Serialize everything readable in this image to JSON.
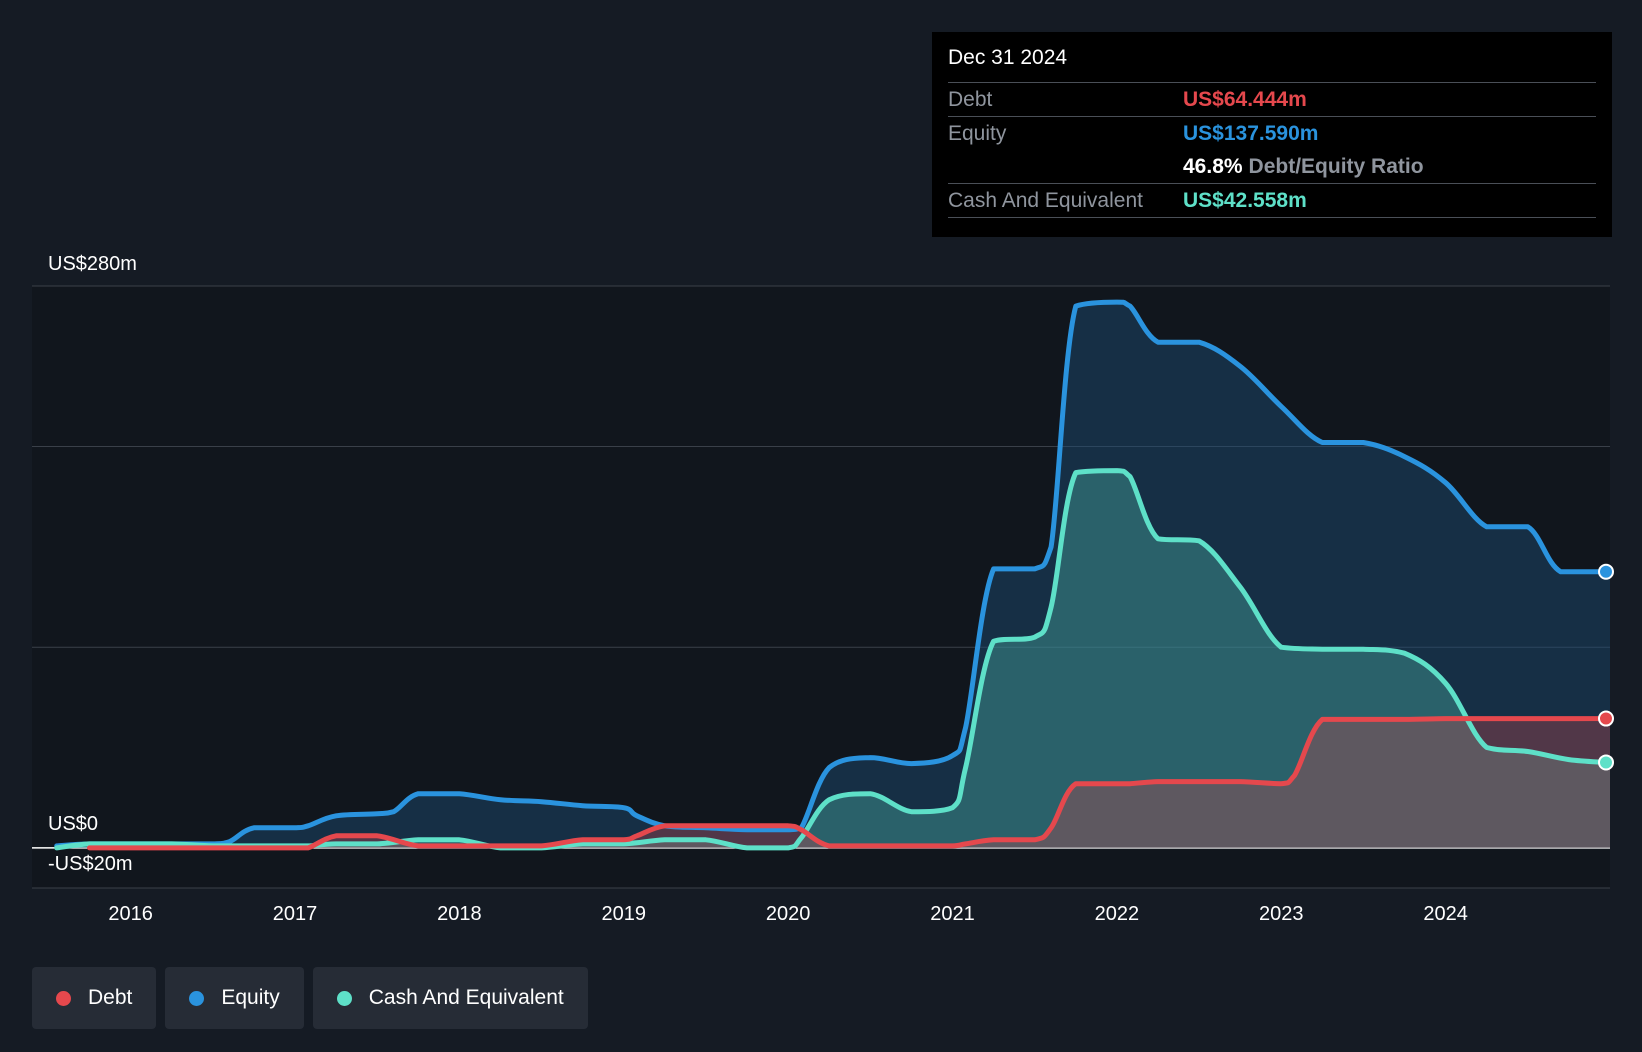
{
  "colors": {
    "debt": "#e5484d",
    "equity": "#2a93de",
    "cash": "#5ee0c8",
    "background": "#151b24",
    "plot_background": "#11161d",
    "grid": "#3a4049"
  },
  "tooltip": {
    "date": "Dec 31 2024",
    "debt_label": "Debt",
    "debt_value": "US$64.444m",
    "equity_label": "Equity",
    "equity_value": "US$137.590m",
    "ratio_value": "46.8%",
    "ratio_label": "Debt/Equity Ratio",
    "cash_label": "Cash And Equivalent",
    "cash_value": "US$42.558m"
  },
  "legend": {
    "debt": "Debt",
    "equity": "Equity",
    "cash": "Cash And Equivalent"
  },
  "chart_data": {
    "type": "area",
    "title": "",
    "xlabel": "",
    "ylabel": "",
    "ylim": [
      -20,
      280
    ],
    "xlim": [
      2015.4,
      2025.0
    ],
    "y_axis_labels": [
      "US$280m",
      "US$0",
      "-US$20m"
    ],
    "gridlines": [
      280,
      200,
      100,
      0
    ],
    "x_ticks": [
      2016,
      2017,
      2018,
      2019,
      2020,
      2021,
      2022,
      2023,
      2024
    ],
    "x_tick_labels": [
      "2016",
      "2017",
      "2018",
      "2019",
      "2020",
      "2021",
      "2022",
      "2023",
      "2024"
    ],
    "series": [
      {
        "name": "Equity",
        "key": "equity",
        "x": [
          2015.55,
          2015.75,
          2016.0,
          2016.25,
          2016.5,
          2016.6,
          2016.75,
          2017.0,
          2017.08,
          2017.25,
          2017.5,
          2017.6,
          2017.75,
          2018.0,
          2018.25,
          2018.5,
          2018.75,
          2019.0,
          2019.08,
          2019.25,
          2019.5,
          2019.75,
          2020.0,
          2020.08,
          2020.25,
          2020.5,
          2020.75,
          2021.0,
          2021.08,
          2021.25,
          2021.5,
          2021.6,
          2021.75,
          2022.0,
          2022.08,
          2022.25,
          2022.5,
          2022.75,
          2023.0,
          2023.25,
          2023.5,
          2023.75,
          2024.0,
          2024.25,
          2024.5,
          2024.7,
          2024.98
        ],
        "values": [
          1,
          2,
          2,
          2,
          2,
          3,
          10,
          10,
          11,
          16,
          17,
          18,
          27,
          27,
          24,
          23,
          21,
          20,
          16,
          11,
          10,
          9,
          9,
          10,
          40,
          45,
          42,
          46,
          60,
          139,
          139,
          150,
          270,
          272,
          270,
          252,
          252,
          240,
          220,
          202,
          202,
          195,
          182,
          160,
          160,
          137.59,
          137.59
        ]
      },
      {
        "name": "Cash And Equivalent",
        "key": "cash",
        "x": [
          2015.55,
          2015.75,
          2016.0,
          2016.25,
          2016.5,
          2016.75,
          2017.0,
          2017.08,
          2017.25,
          2017.5,
          2017.75,
          2018.0,
          2018.25,
          2018.5,
          2018.75,
          2019.0,
          2019.25,
          2019.5,
          2019.75,
          2020.0,
          2020.08,
          2020.25,
          2020.5,
          2020.75,
          2021.0,
          2021.08,
          2021.25,
          2021.5,
          2021.6,
          2021.75,
          2022.0,
          2022.08,
          2022.25,
          2022.5,
          2022.75,
          2023.0,
          2023.25,
          2023.5,
          2023.75,
          2024.0,
          2024.25,
          2024.5,
          2024.75,
          2024.98
        ],
        "values": [
          0,
          2,
          2,
          2,
          1,
          1,
          1,
          1,
          2,
          2,
          4,
          4,
          0,
          0,
          2,
          2,
          4,
          4,
          0,
          0,
          5,
          24,
          27,
          18,
          20,
          40,
          103,
          105,
          120,
          187,
          188,
          185,
          154,
          153,
          130,
          100,
          99,
          99,
          97,
          82,
          50,
          48,
          44,
          42.558
        ]
      },
      {
        "name": "Debt",
        "key": "debt",
        "x": [
          2015.75,
          2016.0,
          2016.25,
          2016.5,
          2016.75,
          2017.0,
          2017.08,
          2017.25,
          2017.5,
          2017.75,
          2018.0,
          2018.25,
          2018.5,
          2018.75,
          2019.0,
          2019.08,
          2019.25,
          2019.5,
          2019.75,
          2020.0,
          2020.08,
          2020.25,
          2020.5,
          2020.75,
          2021.0,
          2021.08,
          2021.25,
          2021.5,
          2021.6,
          2021.75,
          2022.0,
          2022.08,
          2022.25,
          2022.5,
          2022.75,
          2023.0,
          2023.08,
          2023.25,
          2023.5,
          2023.75,
          2024.0,
          2024.25,
          2024.5,
          2024.75,
          2024.98
        ],
        "values": [
          0,
          0,
          0,
          0,
          0,
          0,
          0,
          6,
          6,
          1,
          1,
          1,
          1,
          4,
          4,
          6,
          11,
          11,
          11,
          11,
          9,
          1,
          1,
          1,
          1,
          2,
          4,
          4,
          10,
          32,
          32,
          32,
          33,
          33,
          33,
          32,
          36,
          64,
          64,
          64,
          64.4,
          64.4,
          64.4,
          64.4,
          64.444
        ]
      }
    ]
  }
}
